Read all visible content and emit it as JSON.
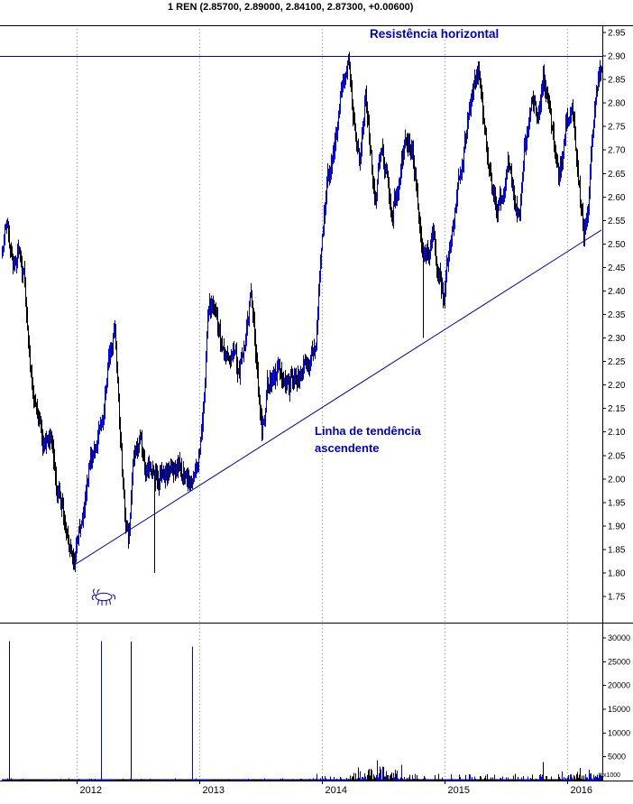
{
  "title": "1 REN (2.85700, 2.89000, 2.84100, 2.87300, +0.00600)",
  "annotations": {
    "resistance": "Resistência horizontal",
    "trend_line1": "Linha de tendência",
    "trend_line2": "ascendente"
  },
  "colors": {
    "up": "#0000ff",
    "down": "#000000",
    "trend_line": "#0000bf",
    "annotation": "#0000cc",
    "grid": "#999999",
    "axis": "#000000",
    "background": "#ffffff"
  },
  "icons": {
    "bull": "bull-icon"
  },
  "chart_data": [
    {
      "type": "line",
      "style": "daily-ohlc-bars",
      "title": "1 REN daily price",
      "x_ticks": [
        "2012",
        "2013",
        "2014",
        "2015",
        "2016"
      ],
      "x_range_years": [
        2011.38,
        2016.28
      ],
      "y_ticks": [
        "2.95",
        "2.90",
        "2.85",
        "2.80",
        "2.75",
        "2.70",
        "2.65",
        "2.60",
        "2.55",
        "2.50",
        "2.45",
        "2.40",
        "2.35",
        "2.30",
        "2.25",
        "2.20",
        "2.15",
        "2.10",
        "2.05",
        "2.00",
        "1.95",
        "1.90",
        "1.85",
        "1.80",
        "1.75"
      ],
      "y_range": [
        1.7,
        2.97
      ],
      "grid": "dotted vertical line at each year",
      "legend_position": "none",
      "resistance_level": 2.9,
      "trendline": [
        [
          2011.97,
          1.815
        ],
        [
          2016.28,
          2.53
        ]
      ],
      "low_spikes": [
        [
          2012.63,
          2.0,
          1.8
        ],
        [
          2014.82,
          2.48,
          2.3
        ]
      ],
      "last_quote": {
        "open": 2.857,
        "high": 2.89,
        "low": 2.841,
        "close": 2.873,
        "change": 0.006
      },
      "close_anchors": [
        [
          2011.4,
          2.5
        ],
        [
          2011.43,
          2.56
        ],
        [
          2011.48,
          2.44
        ],
        [
          2011.52,
          2.5
        ],
        [
          2011.57,
          2.42
        ],
        [
          2011.61,
          2.28
        ],
        [
          2011.65,
          2.15
        ],
        [
          2011.7,
          2.12
        ],
        [
          2011.74,
          2.05
        ],
        [
          2011.79,
          2.1
        ],
        [
          2011.83,
          1.97
        ],
        [
          2011.88,
          1.93
        ],
        [
          2011.92,
          1.87
        ],
        [
          2011.98,
          1.82
        ],
        [
          2012.04,
          1.93
        ],
        [
          2012.1,
          2.02
        ],
        [
          2012.15,
          2.08
        ],
        [
          2012.21,
          2.12
        ],
        [
          2012.27,
          2.28
        ],
        [
          2012.31,
          2.31
        ],
        [
          2012.35,
          2.1
        ],
        [
          2012.39,
          1.92
        ],
        [
          2012.42,
          1.88
        ],
        [
          2012.46,
          2.05
        ],
        [
          2012.51,
          2.08
        ],
        [
          2012.57,
          2.02
        ],
        [
          2012.63,
          2.0
        ],
        [
          2012.7,
          2.02
        ],
        [
          2012.77,
          2.03
        ],
        [
          2012.85,
          2.02
        ],
        [
          2012.92,
          2.0
        ],
        [
          2012.98,
          2.03
        ],
        [
          2013.02,
          2.1
        ],
        [
          2013.07,
          2.35
        ],
        [
          2013.11,
          2.38
        ],
        [
          2013.17,
          2.3
        ],
        [
          2013.23,
          2.25
        ],
        [
          2013.27,
          2.28
        ],
        [
          2013.32,
          2.22
        ],
        [
          2013.38,
          2.3
        ],
        [
          2013.42,
          2.41
        ],
        [
          2013.46,
          2.25
        ],
        [
          2013.51,
          2.1
        ],
        [
          2013.55,
          2.2
        ],
        [
          2013.61,
          2.22
        ],
        [
          2013.67,
          2.22
        ],
        [
          2013.73,
          2.2
        ],
        [
          2013.79,
          2.22
        ],
        [
          2013.85,
          2.24
        ],
        [
          2013.9,
          2.25
        ],
        [
          2013.95,
          2.27
        ],
        [
          2013.99,
          2.5
        ],
        [
          2014.04,
          2.62
        ],
        [
          2014.1,
          2.7
        ],
        [
          2014.15,
          2.82
        ],
        [
          2014.21,
          2.88
        ],
        [
          2014.26,
          2.75
        ],
        [
          2014.3,
          2.68
        ],
        [
          2014.35,
          2.8
        ],
        [
          2014.39,
          2.72
        ],
        [
          2014.43,
          2.6
        ],
        [
          2014.48,
          2.7
        ],
        [
          2014.52,
          2.65
        ],
        [
          2014.57,
          2.56
        ],
        [
          2014.61,
          2.62
        ],
        [
          2014.67,
          2.7
        ],
        [
          2014.73,
          2.72
        ],
        [
          2014.77,
          2.62
        ],
        [
          2014.82,
          2.45
        ],
        [
          2014.86,
          2.48
        ],
        [
          2014.9,
          2.52
        ],
        [
          2014.95,
          2.45
        ],
        [
          2014.99,
          2.38
        ],
        [
          2015.04,
          2.5
        ],
        [
          2015.1,
          2.6
        ],
        [
          2015.15,
          2.7
        ],
        [
          2015.21,
          2.78
        ],
        [
          2015.27,
          2.87
        ],
        [
          2015.33,
          2.72
        ],
        [
          2015.39,
          2.62
        ],
        [
          2015.43,
          2.56
        ],
        [
          2015.48,
          2.62
        ],
        [
          2015.52,
          2.68
        ],
        [
          2015.57,
          2.6
        ],
        [
          2015.61,
          2.55
        ],
        [
          2015.65,
          2.7
        ],
        [
          2015.71,
          2.82
        ],
        [
          2015.76,
          2.75
        ],
        [
          2015.8,
          2.85
        ],
        [
          2015.85,
          2.78
        ],
        [
          2015.89,
          2.7
        ],
        [
          2015.93,
          2.62
        ],
        [
          2015.99,
          2.75
        ],
        [
          2016.04,
          2.8
        ],
        [
          2016.08,
          2.65
        ],
        [
          2016.13,
          2.53
        ],
        [
          2016.17,
          2.6
        ],
        [
          2016.21,
          2.75
        ],
        [
          2016.26,
          2.87
        ]
      ]
    },
    {
      "type": "bar",
      "title": "volume",
      "y_ticks": [
        "30000",
        "25000",
        "20000",
        "15000",
        "10000",
        "5000"
      ],
      "unit_label": "x1000",
      "y_range": [
        0,
        31500
      ],
      "spikes": [
        [
          2011.45,
          29300,
          "#000080"
        ],
        [
          2012.2,
          29300,
          "#0000ff"
        ],
        [
          2012.44,
          29200,
          "#000000"
        ],
        [
          2012.94,
          28200,
          "#0000ff"
        ],
        [
          2014.45,
          4300,
          "#0000bf"
        ],
        [
          2014.49,
          2900,
          "#0000bf"
        ],
        [
          2015.8,
          3900,
          "#000000"
        ],
        [
          2016.18,
          2300,
          "#0000bf"
        ]
      ]
    }
  ]
}
